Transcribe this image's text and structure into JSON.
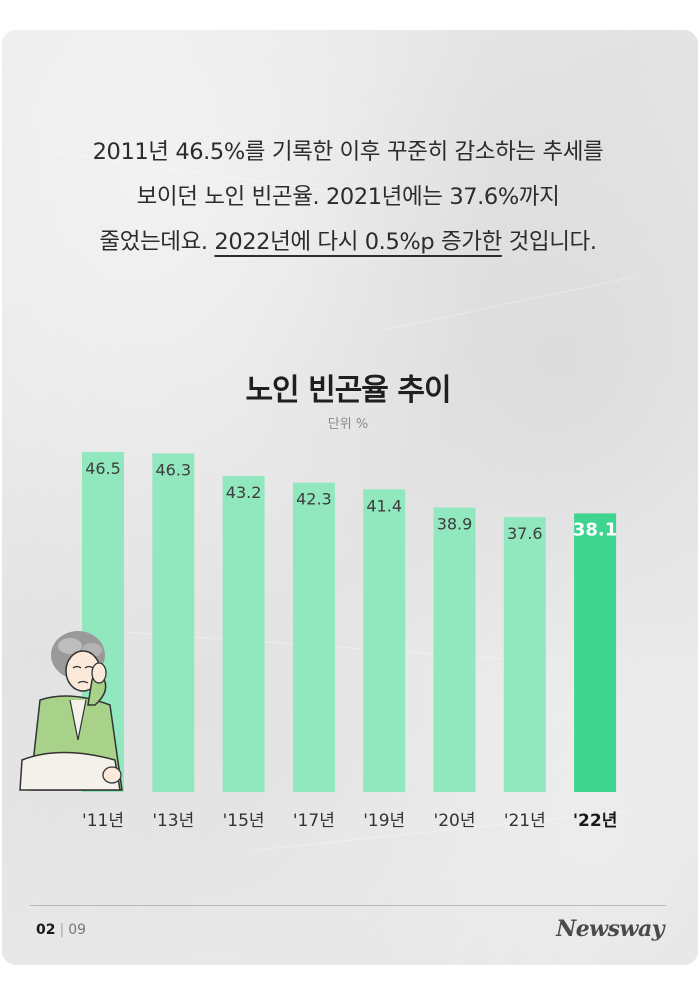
{
  "intro": {
    "line1": "2011년 46.5%를 기록한 이후 꾸준히 감소하는 추세를",
    "line2": "보이던 노인 빈곤율. 2021년에는 37.6%까지",
    "line3_pre": "줄었는데요. ",
    "line3_underlined": "2022년에 다시 0.5%p 증가한",
    "line3_post": " 것입니다."
  },
  "colors": {
    "bar": "#91e8bf",
    "bar_highlight": "#3fd48f",
    "text_dark": "#2c2c2c"
  },
  "chart_data": {
    "type": "bar",
    "title": "노인 빈곤율 추이",
    "unit": "단위 %",
    "categories": [
      "'11년",
      "'13년",
      "'15년",
      "'17년",
      "'19년",
      "'20년",
      "'21년",
      "'22년"
    ],
    "values": [
      46.5,
      46.3,
      43.2,
      42.3,
      41.4,
      38.9,
      37.6,
      38.1
    ],
    "value_labels": [
      "46.5",
      "46.3",
      "43.2",
      "42.3",
      "41.4",
      "38.9",
      "37.6",
      "38.1"
    ],
    "highlight_index": 7,
    "ylim": [
      0,
      46.5
    ],
    "grid": false,
    "legend": "none"
  },
  "illustration": {
    "icon": "worried-elderly-person-icon"
  },
  "footer": {
    "page_current": "02",
    "separator": "|",
    "page_total": "09",
    "brand": "Newsway"
  }
}
